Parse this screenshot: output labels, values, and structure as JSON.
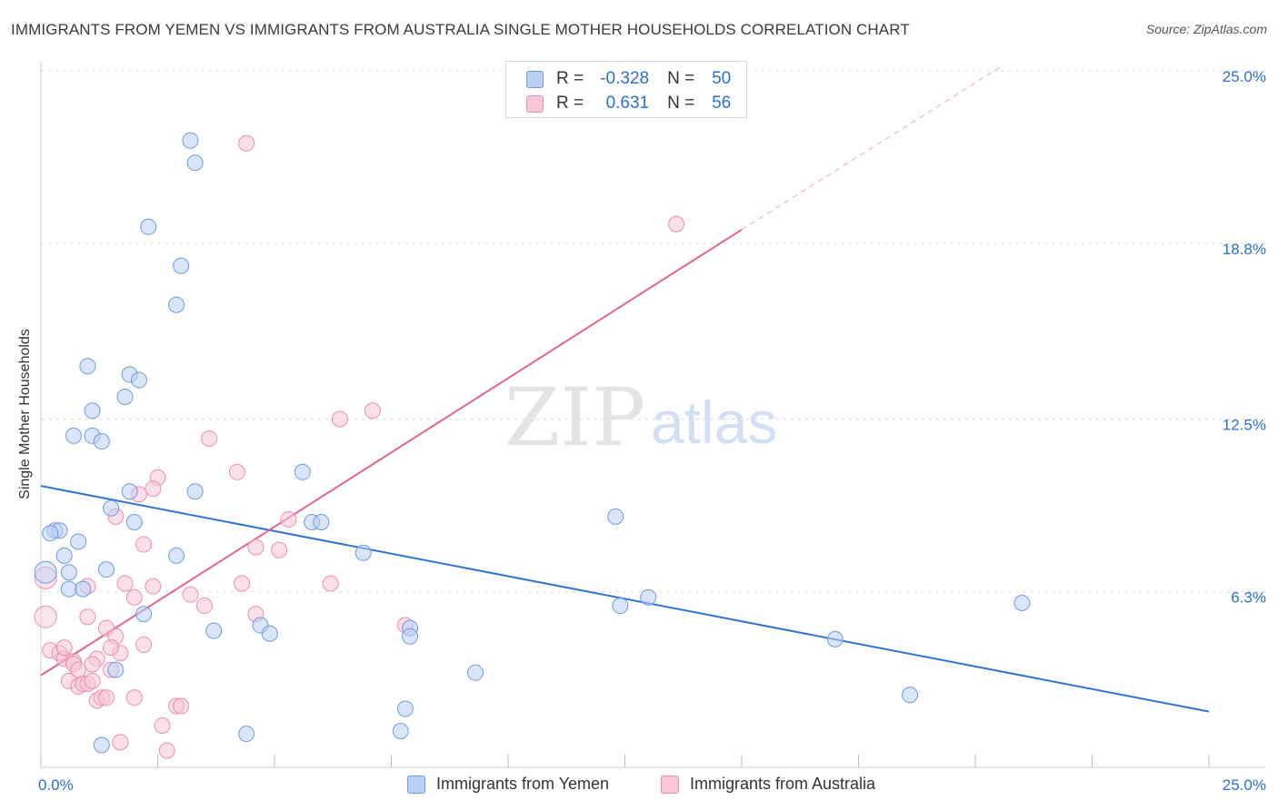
{
  "header": {
    "title": "IMMIGRANTS FROM YEMEN VS IMMIGRANTS FROM AUSTRALIA SINGLE MOTHER HOUSEHOLDS CORRELATION CHART",
    "source": "Source: ZipAtlas.com"
  },
  "watermark": {
    "zip": "ZIP",
    "atlas": "atlas"
  },
  "legend": {
    "r_label": "R =",
    "n_label": "N =",
    "series1": {
      "r": "-0.328",
      "n": "50"
    },
    "series2": {
      "r": "0.631",
      "n": "56"
    }
  },
  "colors": {
    "blue_fill": "#b9d0f4",
    "blue_stroke": "#6f9be0",
    "blue_line": "#2f74d0",
    "pink_fill": "#f9c6d6",
    "pink_stroke": "#e98fae",
    "pink_line": "#e5638f",
    "axis_label": "#2c6fd1",
    "grid": "#dddddd"
  },
  "chart_data": {
    "type": "scatter",
    "title": "IMMIGRANTS FROM YEMEN VS IMMIGRANTS FROM AUSTRALIA SINGLE MOTHER HOUSEHOLDS CORRELATION CHART",
    "xlabel": "",
    "ylabel": "Single Mother Households",
    "xlim": [
      0,
      25
    ],
    "ylim": [
      0,
      25
    ],
    "x_tick_labels": [
      "0.0%",
      "25.0%"
    ],
    "y_ticks": [
      6.3,
      12.5,
      18.8,
      25.0
    ],
    "y_tick_labels": [
      "6.3%",
      "12.5%",
      "18.8%",
      "25.0%"
    ],
    "series": [
      {
        "name": "Immigrants from Yemen",
        "color": "#6f9be0",
        "points": [
          [
            3.2,
            22.5
          ],
          [
            3.3,
            21.7
          ],
          [
            2.3,
            19.4
          ],
          [
            3.0,
            18.0
          ],
          [
            2.9,
            16.6
          ],
          [
            1.0,
            14.4
          ],
          [
            1.9,
            14.1
          ],
          [
            2.1,
            13.9
          ],
          [
            1.8,
            13.3
          ],
          [
            1.1,
            12.8
          ],
          [
            0.7,
            11.9
          ],
          [
            1.1,
            11.9
          ],
          [
            1.3,
            11.7
          ],
          [
            5.6,
            10.6
          ],
          [
            1.9,
            9.9
          ],
          [
            3.3,
            9.9
          ],
          [
            1.5,
            9.3
          ],
          [
            0.3,
            8.5
          ],
          [
            0.4,
            8.5
          ],
          [
            0.2,
            8.4
          ],
          [
            2.0,
            8.8
          ],
          [
            5.8,
            8.8
          ],
          [
            6.0,
            8.8
          ],
          [
            12.3,
            9.0
          ],
          [
            0.8,
            8.1
          ],
          [
            0.5,
            7.6
          ],
          [
            2.9,
            7.6
          ],
          [
            6.9,
            7.7
          ],
          [
            0.1,
            7.0
          ],
          [
            1.4,
            7.1
          ],
          [
            0.6,
            7.0
          ],
          [
            0.6,
            6.4
          ],
          [
            0.9,
            6.4
          ],
          [
            13.0,
            6.1
          ],
          [
            12.4,
            5.8
          ],
          [
            2.2,
            5.5
          ],
          [
            3.7,
            4.9
          ],
          [
            4.7,
            5.1
          ],
          [
            4.9,
            4.8
          ],
          [
            7.9,
            5.0
          ],
          [
            7.9,
            4.7
          ],
          [
            21.0,
            5.9
          ],
          [
            17.0,
            4.6
          ],
          [
            1.6,
            3.5
          ],
          [
            9.3,
            3.4
          ],
          [
            18.6,
            2.6
          ],
          [
            7.8,
            2.1
          ],
          [
            7.7,
            1.3
          ],
          [
            4.4,
            1.2
          ],
          [
            1.3,
            0.8
          ]
        ]
      },
      {
        "name": "Immigrants from Australia",
        "color": "#e98fae",
        "points": [
          [
            4.4,
            22.4
          ],
          [
            13.6,
            19.5
          ],
          [
            7.1,
            12.8
          ],
          [
            6.4,
            12.5
          ],
          [
            3.6,
            11.8
          ],
          [
            4.2,
            10.6
          ],
          [
            2.5,
            10.4
          ],
          [
            2.4,
            10.0
          ],
          [
            2.1,
            9.8
          ],
          [
            1.6,
            9.0
          ],
          [
            5.3,
            8.9
          ],
          [
            2.2,
            8.0
          ],
          [
            4.6,
            7.9
          ],
          [
            5.1,
            7.8
          ],
          [
            0.1,
            6.8
          ],
          [
            1.0,
            6.5
          ],
          [
            1.8,
            6.6
          ],
          [
            2.4,
            6.5
          ],
          [
            6.2,
            6.6
          ],
          [
            4.3,
            6.6
          ],
          [
            2.0,
            6.1
          ],
          [
            3.2,
            6.2
          ],
          [
            3.5,
            5.8
          ],
          [
            4.6,
            5.5
          ],
          [
            0.1,
            5.4
          ],
          [
            1.0,
            5.4
          ],
          [
            1.4,
            5.0
          ],
          [
            1.6,
            4.7
          ],
          [
            7.8,
            5.1
          ],
          [
            2.2,
            4.4
          ],
          [
            0.2,
            4.2
          ],
          [
            0.4,
            4.1
          ],
          [
            0.5,
            3.9
          ],
          [
            0.5,
            4.3
          ],
          [
            0.7,
            3.8
          ],
          [
            1.2,
            3.9
          ],
          [
            1.7,
            4.1
          ],
          [
            1.5,
            4.3
          ],
          [
            0.7,
            3.7
          ],
          [
            0.8,
            3.5
          ],
          [
            1.1,
            3.7
          ],
          [
            1.5,
            3.5
          ],
          [
            0.6,
            3.1
          ],
          [
            0.8,
            2.9
          ],
          [
            0.9,
            3.0
          ],
          [
            1.0,
            3.0
          ],
          [
            1.1,
            3.1
          ],
          [
            1.2,
            2.4
          ],
          [
            1.3,
            2.5
          ],
          [
            1.4,
            2.5
          ],
          [
            2.0,
            2.5
          ],
          [
            2.9,
            2.2
          ],
          [
            3.0,
            2.2
          ],
          [
            2.6,
            1.5
          ],
          [
            1.7,
            0.9
          ],
          [
            2.7,
            0.6
          ]
        ]
      }
    ],
    "trend_lines": [
      {
        "series": "Immigrants from Yemen",
        "x": [
          0,
          25
        ],
        "y": [
          10.1,
          2.0
        ]
      },
      {
        "series": "Immigrants from Australia",
        "x": [
          0,
          15
        ],
        "y": [
          3.3,
          19.3
        ],
        "dashed_extension_to": [
          20.6,
          25.2
        ]
      }
    ]
  }
}
